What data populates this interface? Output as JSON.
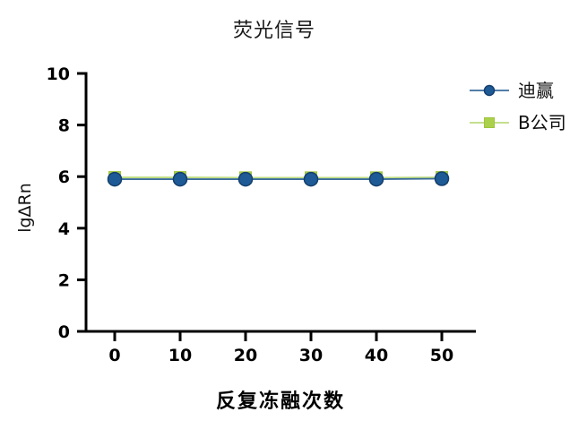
{
  "chart_data": {
    "type": "line",
    "title": "荧光信号",
    "xlabel": "反复冻融次数",
    "ylabel": "lgΔRn",
    "x": [
      0,
      10,
      20,
      30,
      40,
      50
    ],
    "xticks": [
      0,
      10,
      20,
      30,
      40,
      50
    ],
    "yticks": [
      0,
      2,
      4,
      6,
      8,
      10
    ],
    "ylim": [
      0,
      10
    ],
    "xlim": [
      -4,
      55
    ],
    "grid": false,
    "legend_position": "right-top-outside",
    "axis_color": "#000000",
    "series": [
      {
        "name": "迪赢",
        "marker": "circle",
        "color": "#1e5a96",
        "edge_color": "#153f6e",
        "line_color": "#3a6b9d",
        "values": [
          5.9,
          5.9,
          5.9,
          5.9,
          5.9,
          5.92
        ]
      },
      {
        "name": "B公司",
        "marker": "square",
        "color": "#abd04b",
        "edge_color": "#9ec43e",
        "line_color": "#bcdb7d",
        "values": [
          5.97,
          5.97,
          5.96,
          5.96,
          5.96,
          5.97
        ]
      }
    ]
  }
}
